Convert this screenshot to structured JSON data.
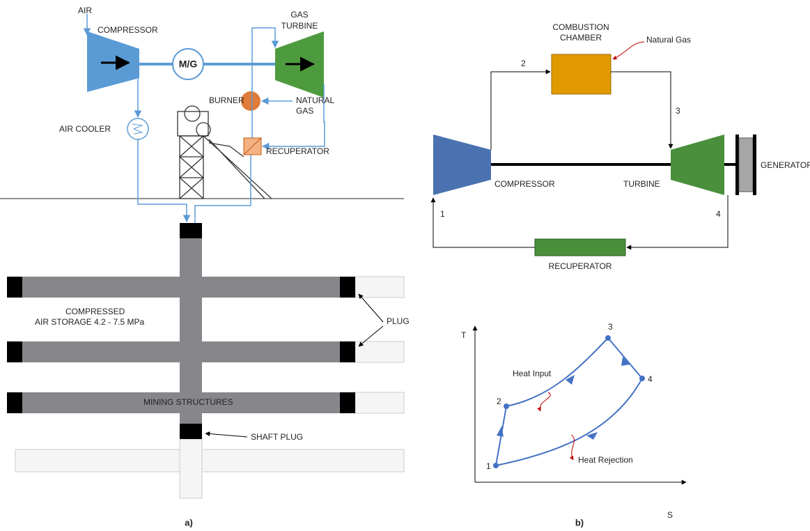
{
  "panel_a": {
    "caption": "a)",
    "air": "AIR",
    "compressor": "COMPRESSOR",
    "motor_generator": "M/G",
    "gas_turbine": [
      "GAS",
      "TURBINE"
    ],
    "burner": "BURNER",
    "natural_gas": [
      "NATURAL",
      "GAS"
    ],
    "air_cooler": "AIR COOLER",
    "recuperator": "RECUPERATOR",
    "storage": [
      "COMPRESSED",
      "AIR STORAGE  4.2 - 7.5 MPa"
    ],
    "plug": "PLUG",
    "mining_structures": "MINING STRUCTURES",
    "shaft_plug": "SHAFT PLUG"
  },
  "panel_b": {
    "caption": "b)",
    "combustion_chamber": [
      "COMBUSTION",
      "CHAMBER"
    ],
    "natural_gas": "Natural Gas",
    "compressor": "COMPRESSOR",
    "turbine": "TURBINE",
    "generator": "GENERATOR",
    "recuperator": "RECUPERATOR",
    "state_points": [
      "1",
      "2",
      "3",
      "4"
    ],
    "ts_diagram": {
      "y_axis": "T",
      "x_axis": "S",
      "state_points": [
        "1",
        "2",
        "3",
        "4"
      ],
      "heat_input": "Heat Input",
      "heat_rejection": "Heat Rejection"
    }
  }
}
